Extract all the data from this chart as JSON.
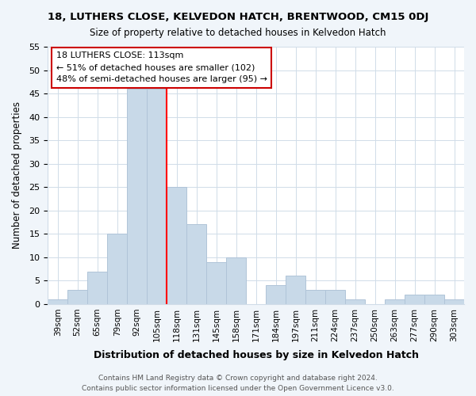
{
  "title": "18, LUTHERS CLOSE, KELVEDON HATCH, BRENTWOOD, CM15 0DJ",
  "subtitle": "Size of property relative to detached houses in Kelvedon Hatch",
  "xlabel": "Distribution of detached houses by size in Kelvedon Hatch",
  "ylabel": "Number of detached properties",
  "bar_labels": [
    "39sqm",
    "52sqm",
    "65sqm",
    "79sqm",
    "92sqm",
    "105sqm",
    "118sqm",
    "131sqm",
    "145sqm",
    "158sqm",
    "171sqm",
    "184sqm",
    "197sqm",
    "211sqm",
    "224sqm",
    "237sqm",
    "250sqm",
    "263sqm",
    "277sqm",
    "290sqm",
    "303sqm"
  ],
  "bar_values": [
    1,
    3,
    7,
    15,
    46,
    46,
    25,
    17,
    9,
    10,
    0,
    4,
    6,
    3,
    3,
    1,
    0,
    1,
    2,
    2,
    1
  ],
  "bar_color": "#c8d9e8",
  "bar_edge_color": "#b0c4d8",
  "vline_x": 5.5,
  "vline_color": "red",
  "annotation_title": "18 LUTHERS CLOSE: 113sqm",
  "annotation_line1": "← 51% of detached houses are smaller (102)",
  "annotation_line2": "48% of semi-detached houses are larger (95) →",
  "annotation_box_color": "#ffffff",
  "annotation_box_edge": "#cc0000",
  "ylim": [
    0,
    55
  ],
  "yticks": [
    0,
    5,
    10,
    15,
    20,
    25,
    30,
    35,
    40,
    45,
    50,
    55
  ],
  "footer_line1": "Contains HM Land Registry data © Crown copyright and database right 2024.",
  "footer_line2": "Contains public sector information licensed under the Open Government Licence v3.0.",
  "bg_color": "#f0f5fa",
  "plot_bg_color": "#ffffff",
  "grid_color": "#d0dce8"
}
